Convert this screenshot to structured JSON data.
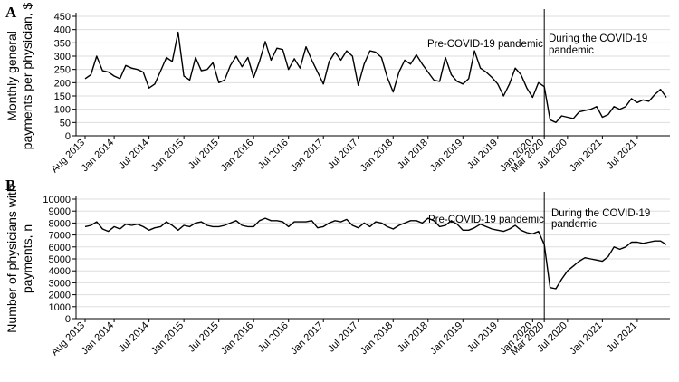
{
  "chart_data": [
    {
      "type": "line",
      "panel_label": "A",
      "ylabel": "Monthly general payments per physician, $",
      "ylim": [
        0,
        450
      ],
      "yticks": [
        0,
        50,
        100,
        150,
        200,
        250,
        300,
        350,
        400,
        450
      ],
      "grid": true,
      "x_tick_labels": [
        "Aug 2013",
        "Jan 2014",
        "Jul 2014",
        "Jan 2015",
        "Jul 2015",
        "Jan 2016",
        "Jul 2016",
        "Jan 2017",
        "Jul 2017",
        "Jan 2018",
        "Jul 2018",
        "Jan 2019",
        "Jul 2019",
        "Jan 2020",
        "Mar 2020",
        "Jul 2020",
        "Jan 2021",
        "Jul 2021"
      ],
      "x_tick_month_index": [
        0,
        5,
        11,
        17,
        23,
        29,
        35,
        41,
        47,
        53,
        59,
        65,
        71,
        77,
        79,
        83,
        89,
        95
      ],
      "divider_month_index": 79,
      "annotations": [
        "Pre-COVID-19 pandemic",
        "During the COVID-19 pandemic"
      ],
      "series": [
        {
          "values": [
            215,
            230,
            300,
            245,
            240,
            225,
            215,
            265,
            255,
            250,
            240,
            180,
            195,
            245,
            295,
            280,
            390,
            225,
            210,
            295,
            245,
            250,
            275,
            200,
            210,
            265,
            300,
            260,
            295,
            220,
            280,
            355,
            285,
            330,
            325,
            250,
            290,
            255,
            335,
            285,
            240,
            195,
            280,
            315,
            285,
            320,
            300,
            190,
            270,
            320,
            315,
            295,
            220,
            165,
            240,
            285,
            270,
            305,
            270,
            240,
            210,
            205,
            295,
            230,
            205,
            195,
            215,
            320,
            255,
            240,
            220,
            195,
            150,
            195,
            255,
            230,
            180,
            145,
            200,
            185,
            60,
            50,
            75,
            70,
            65,
            90,
            95,
            100,
            110,
            70,
            80,
            110,
            100,
            110,
            140,
            125,
            135,
            130,
            155,
            175,
            145
          ]
        }
      ]
    },
    {
      "type": "line",
      "panel_label": "B",
      "ylabel": "Number of physicians with payments, n",
      "ylim": [
        0,
        10000
      ],
      "yticks": [
        0,
        1000,
        2000,
        3000,
        4000,
        5000,
        6000,
        7000,
        8000,
        9000,
        10000
      ],
      "grid": true,
      "x_tick_labels": [
        "Aug 2013",
        "Jan 2014",
        "Jul 2014",
        "Jan 2015",
        "Jul 2015",
        "Jan 2016",
        "Jul 2016",
        "Jan 2017",
        "Jul 2017",
        "Jan 2018",
        "Jul 2018",
        "Jan 2019",
        "Jul 2019",
        "Jan 2020",
        "Mar 2020",
        "Jul 2020",
        "Jan 2021",
        "Jul 2021"
      ],
      "x_tick_month_index": [
        0,
        5,
        11,
        17,
        23,
        29,
        35,
        41,
        47,
        53,
        59,
        65,
        71,
        77,
        79,
        83,
        89,
        95
      ],
      "divider_month_index": 79,
      "annotations": [
        "Pre-COVID-19 pandemic",
        "During the COVID-19 pandemic"
      ],
      "series": [
        {
          "values": [
            7700,
            7800,
            8100,
            7500,
            7300,
            7700,
            7500,
            7900,
            7800,
            7900,
            7700,
            7400,
            7600,
            7700,
            8100,
            7800,
            7400,
            7800,
            7700,
            8000,
            8100,
            7800,
            7700,
            7700,
            7800,
            8000,
            8200,
            7800,
            7700,
            7700,
            8200,
            8400,
            8200,
            8200,
            8100,
            7700,
            8100,
            8100,
            8100,
            8200,
            7600,
            7700,
            8000,
            8200,
            8100,
            8300,
            7800,
            7600,
            8000,
            7700,
            8100,
            8000,
            7700,
            7500,
            7800,
            8000,
            8200,
            8200,
            8000,
            8400,
            8200,
            7700,
            7800,
            8200,
            7900,
            7400,
            7400,
            7600,
            7900,
            7700,
            7500,
            7400,
            7300,
            7500,
            7800,
            7400,
            7200,
            7100,
            7300,
            6200,
            2600,
            2500,
            3300,
            4000,
            4400,
            4800,
            5100,
            5000,
            4900,
            4800,
            5200,
            6000,
            5800,
            6000,
            6400,
            6400,
            6300,
            6400,
            6500,
            6500,
            6200
          ]
        }
      ]
    }
  ]
}
